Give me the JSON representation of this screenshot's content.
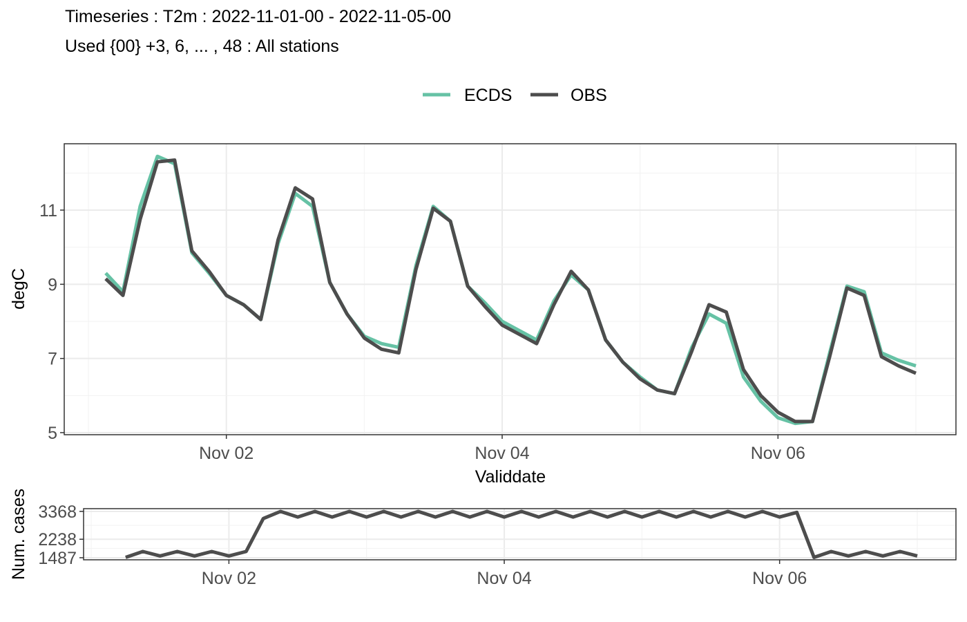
{
  "title": "Timeseries : T2m : 2022-11-01-00 - 2022-11-05-00",
  "subtitle": "Used {00} +3, 6, ... , 48 : All stations",
  "colors": {
    "ECDS": "#66c2a5",
    "OBS": "#4d4d4d"
  },
  "chart_data": [
    {
      "type": "line",
      "xlabel": "Validdate",
      "ylabel": "degC",
      "x_ticks": [
        {
          "date": "2022-11-02",
          "label": "Nov 02"
        },
        {
          "date": "2022-11-04",
          "label": "Nov 04"
        },
        {
          "date": "2022-11-06",
          "label": "Nov 06"
        }
      ],
      "xlim": [
        "2022-11-01 03:00",
        "2022-11-07 00:00"
      ],
      "y_ticks": [
        5,
        7,
        9,
        11
      ],
      "ylim": [
        4.9,
        12.7
      ],
      "grid": true,
      "legend_position": "top",
      "x": [
        "2022-11-01 03:00",
        "2022-11-01 06:00",
        "2022-11-01 09:00",
        "2022-11-01 12:00",
        "2022-11-01 15:00",
        "2022-11-01 18:00",
        "2022-11-01 21:00",
        "2022-11-02 00:00",
        "2022-11-02 03:00",
        "2022-11-02 06:00",
        "2022-11-02 09:00",
        "2022-11-02 12:00",
        "2022-11-02 15:00",
        "2022-11-02 18:00",
        "2022-11-02 21:00",
        "2022-11-03 00:00",
        "2022-11-03 03:00",
        "2022-11-03 06:00",
        "2022-11-03 09:00",
        "2022-11-03 12:00",
        "2022-11-03 15:00",
        "2022-11-03 18:00",
        "2022-11-03 21:00",
        "2022-11-04 00:00",
        "2022-11-04 03:00",
        "2022-11-04 06:00",
        "2022-11-04 09:00",
        "2022-11-04 12:00",
        "2022-11-04 15:00",
        "2022-11-04 18:00",
        "2022-11-04 21:00",
        "2022-11-05 00:00",
        "2022-11-05 03:00",
        "2022-11-05 06:00",
        "2022-11-05 09:00",
        "2022-11-05 12:00",
        "2022-11-05 15:00",
        "2022-11-05 18:00",
        "2022-11-05 21:00",
        "2022-11-06 00:00",
        "2022-11-06 03:00",
        "2022-11-06 06:00",
        "2022-11-06 09:00",
        "2022-11-06 12:00",
        "2022-11-06 15:00",
        "2022-11-06 18:00",
        "2022-11-06 21:00",
        "2022-11-07 00:00"
      ],
      "series": [
        {
          "name": "ECDS",
          "values": [
            9.3,
            8.8,
            11.1,
            12.45,
            12.25,
            9.85,
            9.3,
            8.7,
            8.45,
            8.05,
            10.1,
            11.45,
            11.1,
            9.05,
            8.2,
            7.6,
            7.4,
            7.3,
            9.5,
            11.1,
            10.7,
            8.95,
            8.5,
            8.0,
            7.75,
            7.5,
            8.55,
            9.25,
            8.85,
            7.5,
            6.9,
            6.5,
            6.15,
            6.05,
            7.3,
            8.2,
            7.95,
            6.5,
            5.85,
            5.4,
            5.25,
            5.3,
            7.15,
            8.95,
            8.8,
            7.15,
            6.95,
            6.8
          ]
        },
        {
          "name": "OBS",
          "values": [
            9.15,
            8.7,
            10.75,
            12.3,
            12.35,
            9.9,
            9.35,
            8.7,
            8.45,
            8.05,
            10.2,
            11.6,
            11.3,
            9.05,
            8.2,
            7.55,
            7.25,
            7.15,
            9.4,
            11.05,
            10.7,
            8.95,
            8.4,
            7.9,
            7.65,
            7.4,
            8.45,
            9.35,
            8.85,
            7.5,
            6.9,
            6.45,
            6.15,
            6.05,
            7.2,
            8.45,
            8.25,
            6.7,
            6.0,
            5.55,
            5.3,
            5.3,
            7.05,
            8.9,
            8.7,
            7.05,
            6.8,
            6.6
          ]
        }
      ]
    },
    {
      "type": "line",
      "ylabel": "Num. cases",
      "x_ticks": [
        {
          "date": "2022-11-02",
          "label": "Nov 02"
        },
        {
          "date": "2022-11-04",
          "label": "Nov 04"
        },
        {
          "date": "2022-11-06",
          "label": "Nov 06"
        }
      ],
      "xlim": [
        "2022-11-01 03:00",
        "2022-11-07 00:00"
      ],
      "y_ticks": [
        1487,
        2238,
        3368
      ],
      "ylim": [
        1487,
        3368
      ],
      "grid": true,
      "x": [
        "2022-11-01 06:00",
        "2022-11-01 09:00",
        "2022-11-01 12:00",
        "2022-11-01 15:00",
        "2022-11-01 18:00",
        "2022-11-01 21:00",
        "2022-11-02 00:00",
        "2022-11-02 03:00",
        "2022-11-02 06:00",
        "2022-11-02 09:00",
        "2022-11-02 12:00",
        "2022-11-02 15:00",
        "2022-11-02 18:00",
        "2022-11-02 21:00",
        "2022-11-03 00:00",
        "2022-11-03 03:00",
        "2022-11-03 06:00",
        "2022-11-03 09:00",
        "2022-11-03 12:00",
        "2022-11-03 15:00",
        "2022-11-03 18:00",
        "2022-11-03 21:00",
        "2022-11-04 00:00",
        "2022-11-04 03:00",
        "2022-11-04 06:00",
        "2022-11-04 09:00",
        "2022-11-04 12:00",
        "2022-11-04 15:00",
        "2022-11-04 18:00",
        "2022-11-04 21:00",
        "2022-11-05 00:00",
        "2022-11-05 03:00",
        "2022-11-05 06:00",
        "2022-11-05 09:00",
        "2022-11-05 12:00",
        "2022-11-05 15:00",
        "2022-11-05 18:00",
        "2022-11-05 21:00",
        "2022-11-06 00:00",
        "2022-11-06 03:00",
        "2022-11-06 06:00",
        "2022-11-06 09:00",
        "2022-11-06 12:00",
        "2022-11-06 15:00",
        "2022-11-06 18:00",
        "2022-11-06 21:00",
        "2022-11-07 00:00"
      ],
      "series": [
        {
          "name": "OBS",
          "values": [
            1500,
            1740,
            1560,
            1740,
            1560,
            1740,
            1560,
            1740,
            3080,
            3368,
            3140,
            3368,
            3140,
            3368,
            3140,
            3368,
            3140,
            3368,
            3140,
            3368,
            3140,
            3368,
            3140,
            3368,
            3140,
            3368,
            3140,
            3368,
            3140,
            3368,
            3140,
            3368,
            3140,
            3368,
            3140,
            3368,
            3140,
            3368,
            3140,
            3330,
            1500,
            1740,
            1560,
            1740,
            1560,
            1740,
            1560
          ]
        }
      ]
    }
  ]
}
